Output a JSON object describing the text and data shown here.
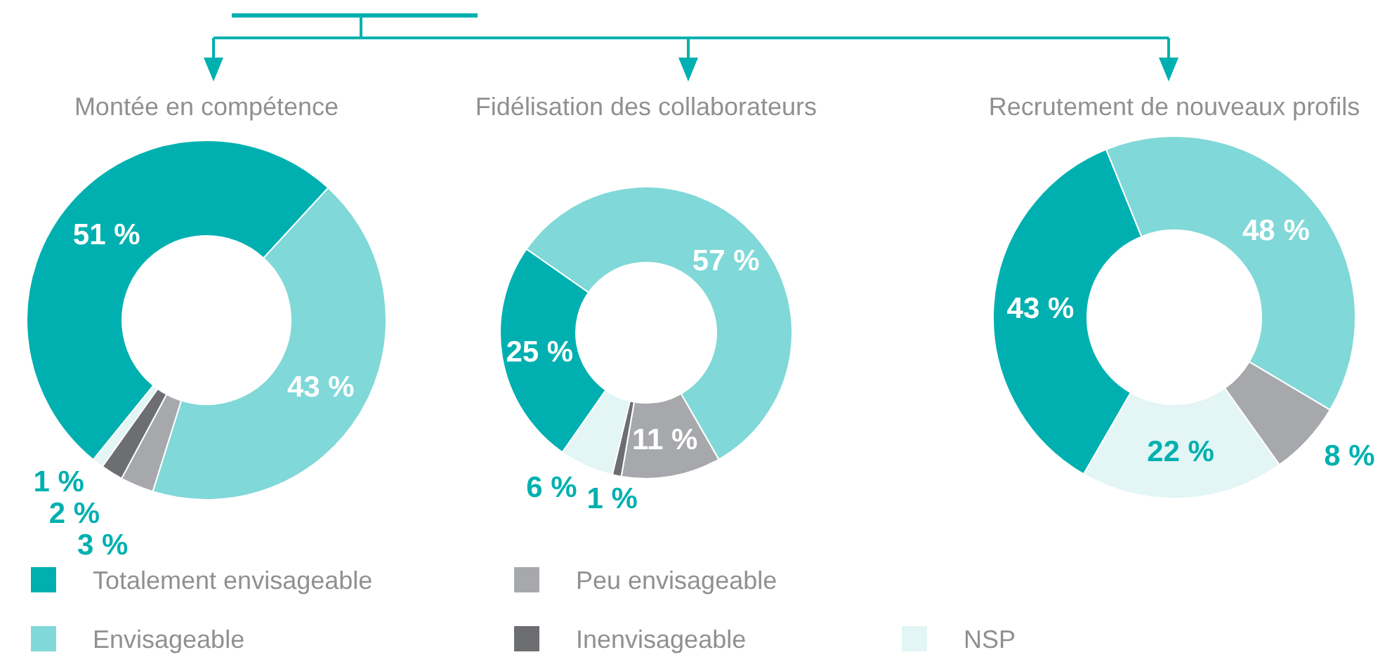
{
  "chart_data": [
    {
      "type": "donut",
      "title": "Montée en compétence",
      "categories": [
        "Totalement envisageable",
        "Envisageable",
        "Peu envisageable",
        "Inenvisageable",
        "NSP"
      ],
      "values": [
        51,
        43,
        3,
        2,
        1
      ],
      "colors": [
        "#00b0b0",
        "#80d8d8",
        "#a7a8ab",
        "#6d6e71",
        "#e3f5f5"
      ],
      "value_labels": [
        "51 %",
        "43 %",
        "3 %",
        "2 %",
        "1 %"
      ],
      "legend": "bottom"
    },
    {
      "type": "donut",
      "title": "Fidélisation des collaborateurs",
      "values": [
        25,
        57,
        11,
        1,
        6
      ],
      "colors": [
        "#00b0b0",
        "#80d8d8",
        "#a7a8ab",
        "#6d6e71",
        "#e3f5f5"
      ],
      "value_labels": [
        "25 %",
        "57 %",
        "11 %",
        "1 %",
        "6 %"
      ]
    },
    {
      "type": "donut",
      "title": "Recrutement de nouveaux profils",
      "values": [
        43,
        48,
        8,
        22
      ],
      "colors": [
        "#00b0b0",
        "#80d8d8",
        "#a7a8ab",
        "#e3f5f5"
      ],
      "value_labels": [
        "43 %",
        "48 %",
        "8 %",
        "22 %"
      ]
    }
  ]
}
